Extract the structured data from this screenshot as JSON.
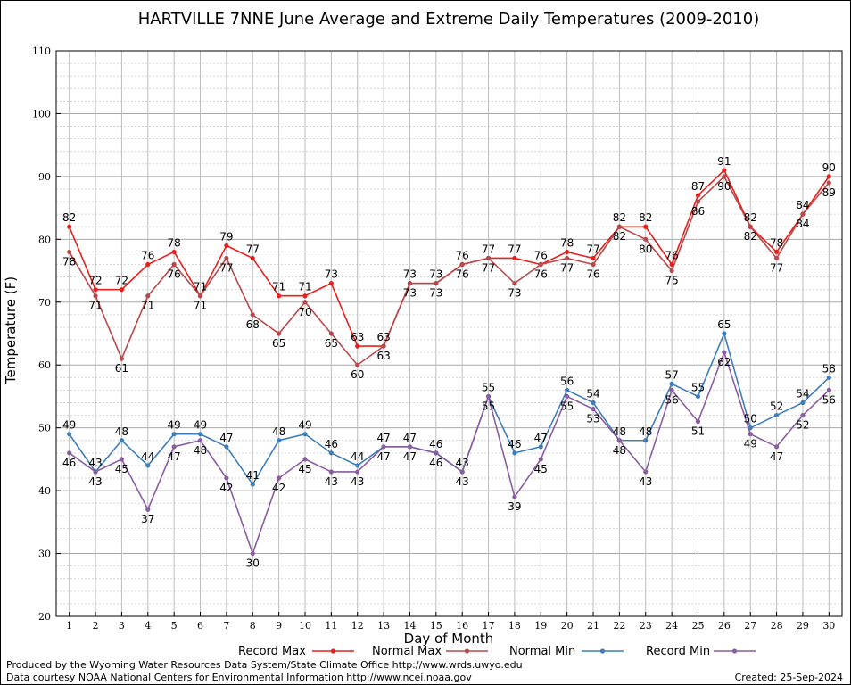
{
  "chart_data": {
    "type": "line",
    "title": "HARTVILLE 7NNE June Average and Extreme Daily Temperatures (2009-2010)",
    "xlabel": "Day of Month",
    "ylabel": "Temperature (F)",
    "ylim": [
      20,
      110
    ],
    "xlim": [
      0.5,
      30.5
    ],
    "y_ticks": [
      20,
      30,
      40,
      50,
      60,
      70,
      80,
      90,
      100,
      110
    ],
    "categories": [
      1,
      2,
      3,
      4,
      5,
      6,
      7,
      8,
      9,
      10,
      11,
      12,
      13,
      14,
      15,
      16,
      17,
      18,
      19,
      20,
      21,
      22,
      23,
      24,
      25,
      26,
      27,
      28,
      29,
      30
    ],
    "grid": true,
    "legend_position": "bottom",
    "series": [
      {
        "name": "Record Max",
        "color": "#e8201c",
        "values": [
          82,
          72,
          72,
          76,
          78,
          71,
          79,
          77,
          71,
          71,
          73,
          63,
          63,
          73,
          73,
          76,
          77,
          77,
          76,
          78,
          77,
          82,
          82,
          76,
          87,
          91,
          82,
          78,
          84,
          90
        ]
      },
      {
        "name": "Normal Max",
        "color": "#b9484a",
        "values": [
          78,
          71,
          61,
          71,
          76,
          71,
          77,
          68,
          65,
          70,
          65,
          60,
          63,
          73,
          73,
          76,
          77,
          73,
          76,
          77,
          76,
          82,
          80,
          75,
          86,
          90,
          82,
          77,
          84,
          89
        ]
      },
      {
        "name": "Normal Min",
        "color": "#3f7db8",
        "values": [
          49,
          43,
          48,
          44,
          49,
          49,
          47,
          41,
          48,
          49,
          46,
          44,
          47,
          47,
          46,
          43,
          55,
          46,
          47,
          56,
          54,
          48,
          48,
          57,
          55,
          65,
          50,
          52,
          54,
          58
        ]
      },
      {
        "name": "Record Min",
        "color": "#8a5ca0",
        "values": [
          46,
          43,
          45,
          37,
          47,
          48,
          42,
          30,
          42,
          45,
          43,
          43,
          47,
          47,
          46,
          43,
          55,
          39,
          45,
          55,
          53,
          48,
          43,
          56,
          51,
          62,
          49,
          47,
          52,
          56
        ]
      }
    ]
  },
  "footer": {
    "left_line1": "Produced by the Wyoming Water Resources Data System/State Climate Office http://www.wrds.uwyo.edu",
    "left_line2": "Data courtesy NOAA National Centers for Environmental Information http://www.ncei.noaa.gov",
    "created": "Created:  25-Sep-2024"
  }
}
